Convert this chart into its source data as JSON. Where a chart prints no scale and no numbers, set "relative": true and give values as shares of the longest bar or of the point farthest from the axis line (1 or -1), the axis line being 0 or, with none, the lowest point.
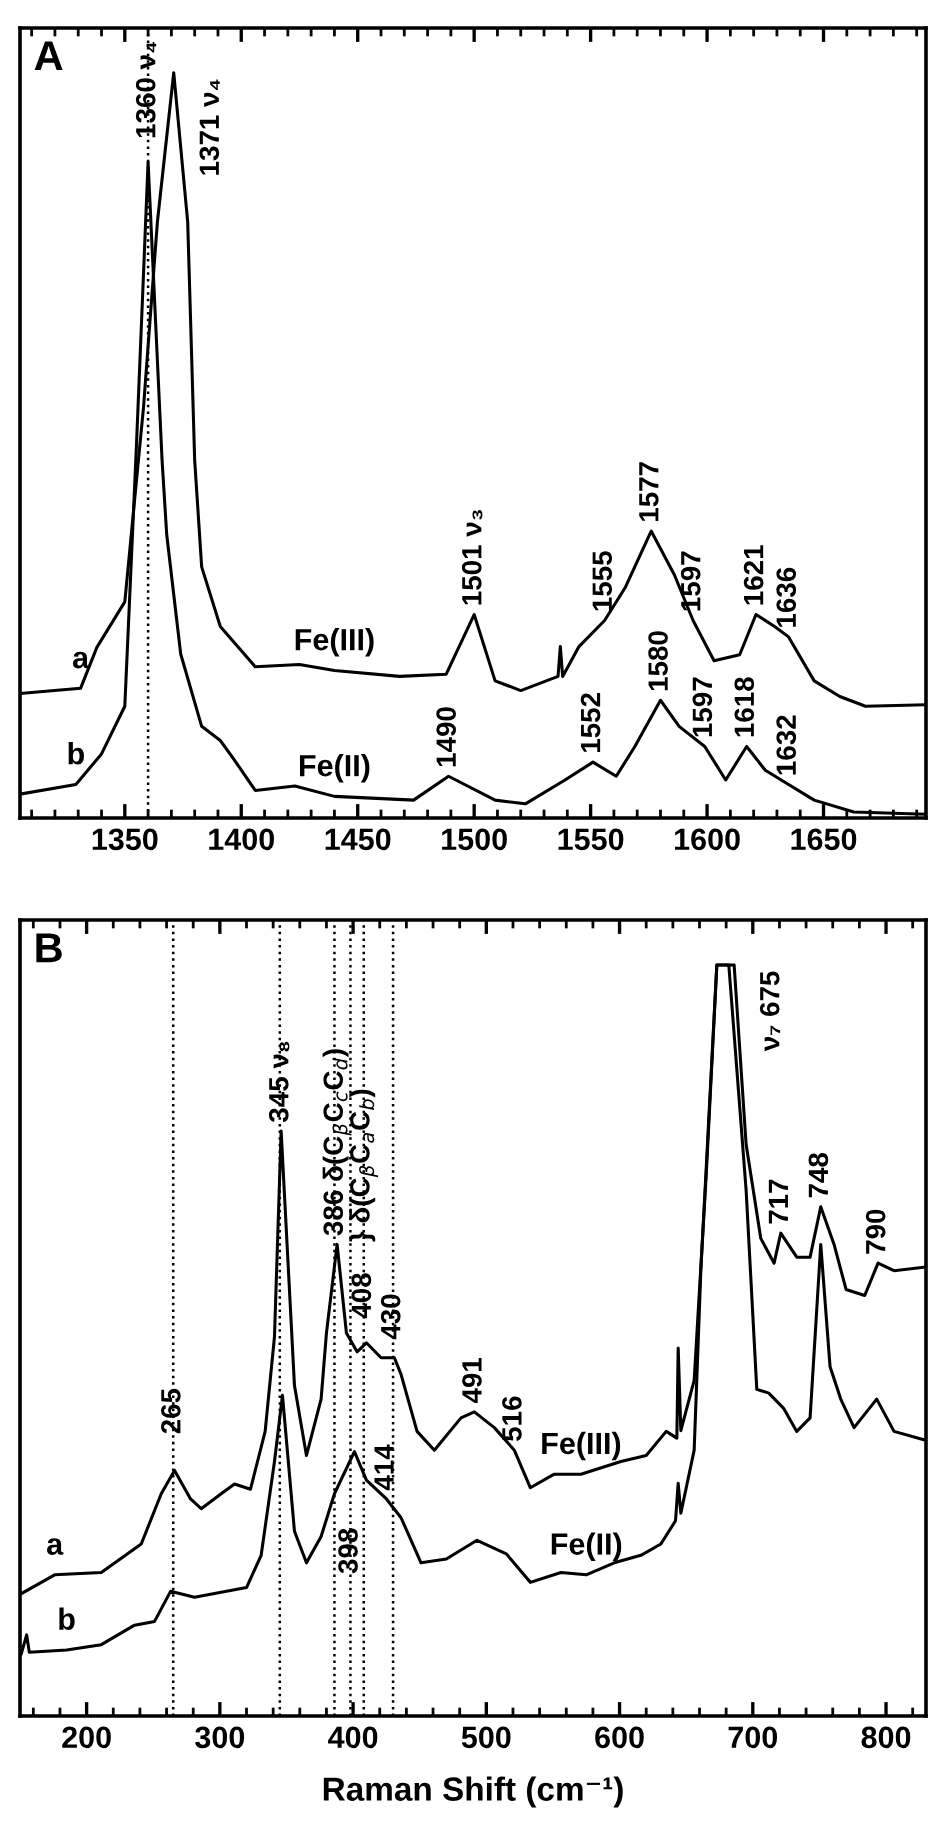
{
  "chart_data": [
    {
      "type": "line",
      "title": "A",
      "relative": true,
      "tick_labels": "x",
      "grid": false,
      "legend": false,
      "xlim": [
        1305,
        1694
      ],
      "xticks": [
        {
          "value": 1310,
          "label": null
        },
        {
          "value": 1320,
          "label": null
        },
        {
          "value": 1330,
          "label": null
        },
        {
          "value": 1340,
          "label": null
        },
        1350,
        {
          "value": 1360,
          "label": null
        },
        {
          "value": 1370,
          "label": null
        },
        {
          "value": 1380,
          "label": null
        },
        {
          "value": 1390,
          "label": null
        },
        1400,
        {
          "value": 1410,
          "label": null
        },
        {
          "value": 1420,
          "label": null
        },
        {
          "value": 1430,
          "label": null
        },
        {
          "value": 1440,
          "label": null
        },
        1450,
        {
          "value": 1460,
          "label": null
        },
        {
          "value": 1470,
          "label": null
        },
        {
          "value": 1480,
          "label": null
        },
        {
          "value": 1490,
          "label": null
        },
        1500,
        {
          "value": 1510,
          "label": null
        },
        {
          "value": 1520,
          "label": null
        },
        {
          "value": 1530,
          "label": null
        },
        {
          "value": 1540,
          "label": null
        },
        1550,
        {
          "value": 1560,
          "label": null
        },
        {
          "value": 1570,
          "label": null
        },
        {
          "value": 1580,
          "label": null
        },
        {
          "value": 1590,
          "label": null
        },
        1600,
        {
          "value": 1610,
          "label": null
        },
        {
          "value": 1620,
          "label": null
        },
        {
          "value": 1630,
          "label": null
        },
        {
          "value": 1640,
          "label": null
        },
        1650,
        {
          "value": 1660,
          "label": null
        },
        {
          "value": 1670,
          "label": null
        },
        {
          "value": 1680,
          "label": null
        },
        {
          "value": 1690,
          "label": null
        }
      ],
      "series": [
        {
          "color": "#000000",
          "x": [
            1305,
            1331,
            1338,
            1350,
            1358,
            1364,
            1371,
            1377,
            1380,
            1383,
            1391,
            1406,
            1425,
            1440,
            1468,
            1488,
            1500,
            1509,
            1520,
            1536,
            1537,
            1538,
            1545,
            1556,
            1565,
            1576,
            1586,
            1594,
            1603,
            1614,
            1621,
            1629,
            1635,
            1646,
            1657,
            1668,
            1694
          ],
          "values": [
            0.167,
            0.174,
            0.229,
            0.29,
            0.55,
            0.8,
            1.0,
            0.8,
            0.48,
            0.337,
            0.257,
            0.203,
            0.206,
            0.198,
            0.19,
            0.193,
            0.273,
            0.184,
            0.171,
            0.19,
            0.23,
            0.19,
            0.23,
            0.265,
            0.31,
            0.385,
            0.326,
            0.265,
            0.211,
            0.219,
            0.273,
            0.257,
            0.243,
            0.184,
            0.163,
            0.15,
            0.152
          ]
        },
        {
          "color": "#000000",
          "x": [
            1305,
            1329,
            1340,
            1350,
            1355,
            1360,
            1366,
            1368,
            1374,
            1383,
            1391,
            1397,
            1406,
            1423,
            1440,
            1474,
            1489,
            1509,
            1522,
            1539,
            1551,
            1561,
            1569,
            1580,
            1588,
            1599,
            1608,
            1617,
            1625,
            1635,
            1646,
            1663,
            1694
          ],
          "values": [
            0.032,
            0.045,
            0.086,
            0.15,
            0.5,
            0.88,
            0.48,
            0.38,
            0.22,
            0.123,
            0.104,
            0.078,
            0.037,
            0.043,
            0.029,
            0.024,
            0.056,
            0.024,
            0.019,
            0.051,
            0.075,
            0.056,
            0.096,
            0.158,
            0.123,
            0.096,
            0.051,
            0.096,
            0.064,
            0.045,
            0.024,
            0.008,
            0.005
          ]
        }
      ],
      "ref_lines": [
        {
          "axis": "x",
          "value": 1360,
          "color": "#000000",
          "line_style": "dotted"
        }
      ],
      "annotations": [
        {
          "text": "a",
          "x": 1331,
          "y": 0.174
        },
        {
          "text": "Fe(III)",
          "x": 1440,
          "y": 0.198
        },
        {
          "text": "b",
          "x": 1329,
          "y": 0.045
        },
        {
          "text": "Fe(II)",
          "x": 1440,
          "y": 0.029
        },
        {
          "text": "1360 ν₄",
          "x": 1360,
          "y": 0.9
        },
        {
          "text": "1371 ν₄",
          "x": 1371,
          "y": 1.0
        },
        {
          "text": "1501 ν₃",
          "x": 1500,
          "y": 0.273
        },
        {
          "text": "1555",
          "x": 1556,
          "y": 0.265
        },
        {
          "text": "1577",
          "x": 1576,
          "y": 0.385
        },
        {
          "text": "1597",
          "x": 1594,
          "y": 0.265
        },
        {
          "text": "1621",
          "x": 1621,
          "y": 0.273
        },
        {
          "text": "1636",
          "x": 1635,
          "y": 0.243
        },
        {
          "text": "1490",
          "x": 1489,
          "y": 0.056
        },
        {
          "text": "1552",
          "x": 1551,
          "y": 0.075
        },
        {
          "text": "1580",
          "x": 1580,
          "y": 0.158
        },
        {
          "text": "1597",
          "x": 1599,
          "y": 0.096
        },
        {
          "text": "1618",
          "x": 1617,
          "y": 0.096
        },
        {
          "text": "1632",
          "x": 1635,
          "y": 0.045
        }
      ]
    },
    {
      "type": "line",
      "title": "B",
      "relative": true,
      "tick_labels": "x",
      "grid": false,
      "legend": false,
      "xlabel": "Raman Shift (cm⁻¹)",
      "xlim": [
        150,
        830
      ],
      "xticks": [
        {
          "value": 160,
          "label": null
        },
        {
          "value": 180,
          "label": null
        },
        200,
        {
          "value": 220,
          "label": null
        },
        {
          "value": 240,
          "label": null
        },
        {
          "value": 260,
          "label": null
        },
        {
          "value": 280,
          "label": null
        },
        300,
        {
          "value": 320,
          "label": null
        },
        {
          "value": 340,
          "label": null
        },
        {
          "value": 360,
          "label": null
        },
        {
          "value": 380,
          "label": null
        },
        400,
        {
          "value": 420,
          "label": null
        },
        {
          "value": 440,
          "label": null
        },
        {
          "value": 460,
          "label": null
        },
        {
          "value": 480,
          "label": null
        },
        500,
        {
          "value": 520,
          "label": null
        },
        {
          "value": 540,
          "label": null
        },
        {
          "value": 560,
          "label": null
        },
        {
          "value": 580,
          "label": null
        },
        600,
        {
          "value": 620,
          "label": null
        },
        {
          "value": 640,
          "label": null
        },
        {
          "value": 660,
          "label": null
        },
        {
          "value": 680,
          "label": null
        },
        700,
        {
          "value": 720,
          "label": null
        },
        {
          "value": 740,
          "label": null
        },
        {
          "value": 760,
          "label": null
        },
        {
          "value": 780,
          "label": null
        },
        800,
        {
          "value": 820,
          "label": null
        }
      ],
      "series": [
        {
          "color": "#000000",
          "x": [
            151,
            176,
            211,
            241,
            256,
            266,
            278,
            286,
            301,
            311,
            323,
            334,
            341,
            346,
            356,
            365,
            376,
            380,
            388,
            395,
            403,
            410,
            421,
            431,
            436,
            448,
            461,
            481,
            491,
            506,
            521,
            533,
            551,
            571,
            601,
            620,
            635,
            643,
            644,
            646,
            656,
            665,
            673,
            686,
            695,
            706,
            716,
            721,
            733,
            743,
            751,
            761,
            770,
            784,
            794,
            806,
            830
          ],
          "values": [
            0.163,
            0.188,
            0.191,
            0.229,
            0.296,
            0.327,
            0.289,
            0.276,
            0.296,
            0.309,
            0.302,
            0.379,
            0.505,
            0.779,
            0.44,
            0.347,
            0.422,
            0.51,
            0.628,
            0.51,
            0.485,
            0.497,
            0.477,
            0.477,
            0.455,
            0.379,
            0.354,
            0.397,
            0.405,
            0.384,
            0.354,
            0.304,
            0.322,
            0.322,
            0.339,
            0.347,
            0.379,
            0.37,
            0.49,
            0.38,
            0.447,
            0.719,
            1.0,
            1.0,
            0.761,
            0.636,
            0.603,
            0.643,
            0.611,
            0.611,
            0.678,
            0.628,
            0.568,
            0.56,
            0.603,
            0.593,
            0.598
          ]
        },
        {
          "color": "#000000",
          "x": [
            151,
            155,
            157,
            185,
            211,
            236,
            251,
            263,
            281,
            305,
            320,
            331,
            341,
            347,
            356,
            365,
            376,
            386,
            401,
            410,
            425,
            436,
            451,
            470,
            493,
            515,
            533,
            556,
            575,
            596,
            616,
            631,
            642,
            644,
            646,
            656,
            661,
            673,
            682,
            695,
            703,
            712,
            723,
            733,
            743,
            751,
            758,
            766,
            776,
            793,
            806,
            830
          ],
          "values": [
            0.083,
            0.108,
            0.085,
            0.088,
            0.095,
            0.121,
            0.126,
            0.166,
            0.158,
            0.166,
            0.171,
            0.214,
            0.339,
            0.427,
            0.246,
            0.204,
            0.239,
            0.296,
            0.352,
            0.314,
            0.289,
            0.264,
            0.204,
            0.209,
            0.234,
            0.216,
            0.178,
            0.191,
            0.188,
            0.204,
            0.214,
            0.229,
            0.26,
            0.31,
            0.27,
            0.354,
            0.593,
            1.0,
            1.0,
            0.7,
            0.435,
            0.43,
            0.41,
            0.379,
            0.397,
            0.628,
            0.465,
            0.422,
            0.384,
            0.422,
            0.379,
            0.367
          ]
        }
      ],
      "ref_lines": [
        {
          "axis": "x",
          "value": 265,
          "color": "#000000",
          "line_style": "dotted"
        },
        {
          "axis": "x",
          "value": 345,
          "color": "#000000",
          "line_style": "dotted"
        },
        {
          "axis": "x",
          "value": 386,
          "color": "#000000",
          "line_style": "dotted"
        },
        {
          "axis": "x",
          "value": 398,
          "color": "#000000",
          "line_style": "dotted"
        },
        {
          "axis": "x",
          "value": 408,
          "color": "#000000",
          "line_style": "dotted"
        },
        {
          "axis": "x",
          "value": 430,
          "color": "#000000",
          "line_style": "dotted"
        }
      ],
      "annotations": [
        {
          "text": "a",
          "x": 176,
          "y": 0.188
        },
        {
          "text": "Fe(III)",
          "x": 571,
          "y": 0.322
        },
        {
          "text": "b",
          "x": 185,
          "y": 0.088
        },
        {
          "text": "Fe(II)",
          "x": 575,
          "y": 0.188
        },
        {
          "text": "265",
          "x": 265,
          "y": 0.364
        },
        {
          "text": "345 ν₈",
          "x": 346,
          "y": 0.779
        },
        {
          "text": "386 δ(C$_{β}$C$_{c}$C$_{d}$)",
          "x": 388,
          "y": 0.628
        },
        {
          "text": "} δ(C$_{β}$C$_{a}$C$_{b}$)",
          "x": 408,
          "y": 0.62
        },
        {
          "text": "408",
          "x": 408,
          "y": 0.518
        },
        {
          "text": "430",
          "x": 430,
          "y": 0.49
        },
        {
          "text": "491",
          "x": 491,
          "y": 0.405
        },
        {
          "text": "516",
          "x": 521,
          "y": 0.354
        },
        {
          "text": "398",
          "x": 398,
          "y": 0.178
        },
        {
          "text": "414",
          "x": 425,
          "y": 0.289
        },
        {
          "text": "ν₇ 675",
          "x": 686,
          "y": 1.0
        },
        {
          "text": "717",
          "x": 721,
          "y": 0.643
        },
        {
          "text": "748",
          "x": 751,
          "y": 0.678
        },
        {
          "text": "790",
          "x": 794,
          "y": 0.603
        }
      ]
    }
  ]
}
